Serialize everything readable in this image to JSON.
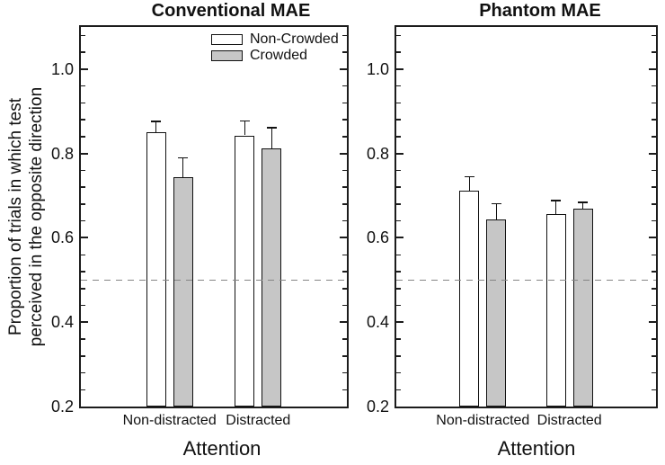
{
  "figure": {
    "ylabel_line1": "Proportion of trials in which test",
    "ylabel_line2": "perceived in the opposite direction",
    "background": "#ffffff",
    "axis_color": "#1c1c1c",
    "reference_line_color": "#858585"
  },
  "legend": {
    "items": [
      {
        "label": "Non-Crowded",
        "fill": "#ffffff"
      },
      {
        "label": "Crowded",
        "fill": "#c6c6c6"
      }
    ]
  },
  "chart_data": [
    {
      "type": "bar",
      "title": "Conventional MAE",
      "xlabel": "Attention",
      "ylabel": "Proportion of trials in which test perceived in the opposite direction",
      "categories": [
        "Non-distracted",
        "Distracted"
      ],
      "series": [
        {
          "name": "Non-Crowded",
          "fill": "#ffffff",
          "values": [
            0.85,
            0.843
          ],
          "errors_plus": [
            0.026,
            0.034
          ]
        },
        {
          "name": "Crowded",
          "fill": "#c6c6c6",
          "values": [
            0.744,
            0.813
          ],
          "errors_plus": [
            0.046,
            0.048
          ]
        }
      ],
      "ylim": [
        0.2,
        1.1
      ],
      "yticks": [
        0.2,
        0.4,
        0.6,
        0.8,
        1.0
      ],
      "minor_tick_step": 0.04,
      "reference_line": 0.5,
      "grid": false,
      "legend_position": "top-right-inside"
    },
    {
      "type": "bar",
      "title": "Phantom MAE",
      "xlabel": "Attention",
      "ylabel": "Proportion of trials in which test perceived in the opposite direction",
      "categories": [
        "Non-distracted",
        "Distracted"
      ],
      "series": [
        {
          "name": "Non-Crowded",
          "fill": "#ffffff",
          "values": [
            0.711,
            0.657
          ],
          "errors_plus": [
            0.034,
            0.031
          ]
        },
        {
          "name": "Crowded",
          "fill": "#c6c6c6",
          "values": [
            0.643,
            0.669
          ],
          "errors_plus": [
            0.038,
            0.015
          ]
        }
      ],
      "ylim": [
        0.2,
        1.1
      ],
      "yticks": [
        0.2,
        0.4,
        0.6,
        0.8,
        1.0
      ],
      "minor_tick_step": 0.04,
      "reference_line": 0.5,
      "grid": false,
      "legend_position": "none"
    }
  ]
}
